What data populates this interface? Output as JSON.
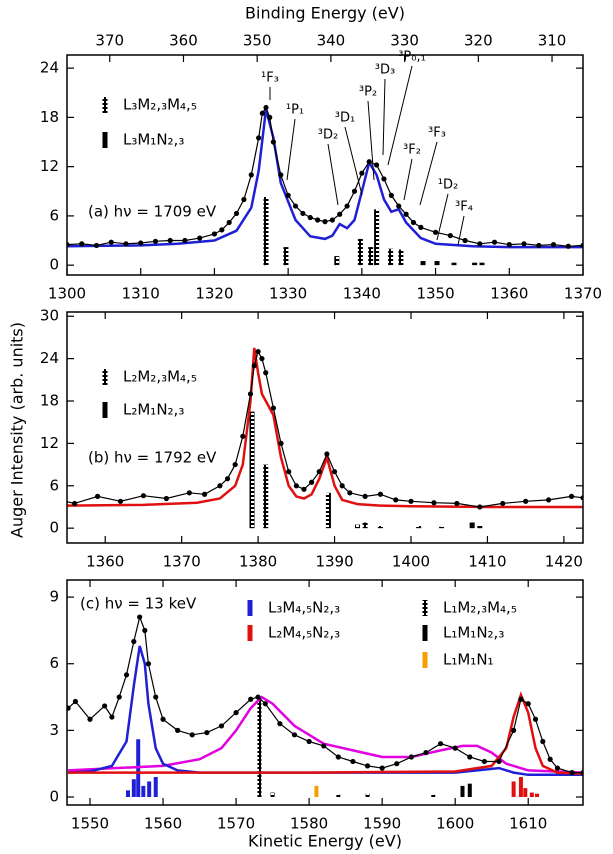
{
  "chart_data": [
    {
      "type": "line",
      "x2label": "Binding Energy (eV)",
      "annotation": "(a) hν = 1709 eV",
      "xlim": [
        1300,
        1370
      ],
      "xticks": [
        1300,
        1310,
        1320,
        1330,
        1340,
        1350,
        1360,
        1370
      ],
      "x2lim": [
        375.8,
        305.8
      ],
      "x2ticks": [
        370,
        360,
        350,
        340,
        330,
        320,
        310
      ],
      "ylim": [
        -1.2,
        25.6
      ],
      "yticks": [
        0,
        6,
        12,
        18,
        24
      ],
      "terms": [
        "¹F₃",
        "¹P₁",
        "³D₂",
        "³D₁",
        "³P₂",
        "³D₃",
        "³P₀,₁",
        "³F₂",
        "³F₃",
        "¹D₂",
        "³F₄"
      ],
      "series": [
        {
          "style": "points",
          "color": "#000000",
          "x": [
            1300,
            1302,
            1304,
            1306,
            1308,
            1310,
            1312,
            1314,
            1316,
            1318,
            1320,
            1321,
            1322,
            1323,
            1324,
            1325,
            1326,
            1326.5,
            1327,
            1327.5,
            1328,
            1329,
            1330,
            1331,
            1332,
            1333,
            1334,
            1335,
            1336,
            1337,
            1338,
            1339,
            1340,
            1341,
            1342,
            1343,
            1344,
            1345,
            1346,
            1347,
            1348,
            1350,
            1352,
            1354,
            1356,
            1358,
            1360,
            1362,
            1364,
            1366,
            1368,
            1370
          ],
          "values": [
            2.5,
            2.6,
            2.4,
            2.8,
            2.6,
            2.7,
            2.9,
            3.0,
            3.0,
            3.3,
            3.8,
            4.3,
            5.2,
            6.3,
            8.0,
            11,
            15.5,
            18.5,
            19.2,
            18,
            15,
            11,
            8.5,
            7.2,
            6.3,
            5.8,
            5.5,
            5.3,
            5.5,
            6.2,
            7.2,
            9.0,
            11.2,
            12.6,
            12.2,
            10.5,
            8.5,
            7.2,
            6.2,
            5.2,
            4.6,
            4.0,
            3.6,
            3.0,
            2.6,
            2.8,
            2.5,
            2.6,
            2.4,
            2.5,
            2.3,
            2.4
          ]
        },
        {
          "style": "line",
          "color": "#1f1fd6",
          "x": [
            1300,
            1310,
            1315,
            1320,
            1323,
            1325,
            1326,
            1327,
            1328,
            1329,
            1331,
            1333,
            1335,
            1336,
            1337,
            1338,
            1339,
            1340,
            1341,
            1342,
            1343,
            1344,
            1345,
            1346,
            1348,
            1350,
            1355,
            1360,
            1370
          ],
          "values": [
            2.3,
            2.4,
            2.6,
            3.0,
            4.2,
            7,
            11.5,
            19,
            15.5,
            10,
            5.5,
            3.5,
            3.2,
            3.6,
            5,
            4.5,
            5.5,
            9,
            12.5,
            11,
            8,
            6.5,
            6.8,
            5.2,
            3.3,
            2.6,
            2.3,
            2.2,
            2.2
          ]
        },
        {
          "style": "sticks",
          "name": "L₃M₂,₃M₄,₅",
          "color": "hatched",
          "x": [
            1327,
            1329.7,
            1336.6,
            1339.8,
            1341.2,
            1342,
            1343.9,
            1345.3
          ],
          "values": [
            8.3,
            2.2,
            1.1,
            3.2,
            2.2,
            6.8,
            2.0,
            1.9
          ]
        },
        {
          "style": "sticks",
          "name": "L₃M₁N₂,₃",
          "color": "#000000",
          "x": [
            1348.3,
            1350.2,
            1352.5,
            1355.3,
            1356.3
          ],
          "values": [
            0.5,
            0.5,
            0.3,
            0.3,
            0.3
          ]
        }
      ]
    },
    {
      "type": "line",
      "ylabel": "Auger Intensity (arb. units)",
      "annotation": "(b) hν = 1792 eV",
      "xlim": [
        1355,
        1422.5
      ],
      "xticks": [
        1360,
        1370,
        1380,
        1390,
        1400,
        1410,
        1420
      ],
      "ylim": [
        -2.1,
        30.6
      ],
      "yticks": [
        0,
        6,
        12,
        18,
        24,
        30
      ],
      "series": [
        {
          "style": "points",
          "color": "#000000",
          "x": [
            1353,
            1356,
            1359,
            1362,
            1365,
            1368,
            1371,
            1373,
            1375,
            1376,
            1377,
            1378,
            1379,
            1379.5,
            1380,
            1380.5,
            1381,
            1382,
            1383,
            1384,
            1385,
            1386,
            1387,
            1388,
            1389,
            1390,
            1391,
            1392,
            1394,
            1396,
            1398,
            1400,
            1403,
            1406,
            1409,
            1412,
            1415,
            1418,
            1421,
            1422.5
          ],
          "values": [
            4.2,
            3.5,
            4.5,
            3.8,
            4.6,
            4.2,
            5,
            4.8,
            6,
            7,
            9,
            13,
            19,
            23,
            25,
            24,
            22,
            17,
            12,
            8,
            6,
            5.5,
            6.5,
            8,
            10.5,
            8,
            6,
            5,
            4.5,
            4.8,
            4,
            3.8,
            3.6,
            3.5,
            3,
            3.5,
            3.8,
            4,
            4.5,
            4.3
          ]
        },
        {
          "style": "line",
          "color": "#e01010",
          "x": [
            1355,
            1365,
            1372,
            1375,
            1377,
            1378,
            1379,
            1379.5,
            1380,
            1380.5,
            1381,
            1382,
            1383,
            1384,
            1385,
            1386,
            1387,
            1388,
            1389,
            1390,
            1391,
            1393,
            1396,
            1400,
            1410,
            1422.5
          ],
          "values": [
            3.2,
            3.3,
            3.6,
            4.2,
            6,
            9,
            18,
            25.5,
            22,
            19,
            18,
            16,
            10,
            6,
            4.5,
            4.2,
            4.8,
            7,
            10,
            6,
            4,
            3.4,
            3.2,
            3.1,
            3.0,
            3.0
          ]
        },
        {
          "style": "sticks",
          "name": "L₂M₂,₃M₄,₅",
          "color": "hatched",
          "x": [
            1379.2,
            1381,
            1389.2,
            1393,
            1394,
            1396,
            1401,
            1404
          ],
          "values": [
            16.5,
            9,
            5,
            0.5,
            0.8,
            0.3,
            0.3,
            0.2
          ]
        },
        {
          "style": "sticks",
          "name": "L₂M₁N₂,₃",
          "color": "#000000",
          "x": [
            1408,
            1409
          ],
          "values": [
            0.8,
            0.3
          ]
        }
      ]
    },
    {
      "type": "line",
      "xlabel": "Kinetic Energy (eV)",
      "annotation": "(c) hν = 13 keV",
      "xlim": [
        1546.85,
        1617.5
      ],
      "xticks": [
        1550,
        1560,
        1570,
        1580,
        1590,
        1600,
        1610
      ],
      "ylim": [
        -0.36,
        9.77
      ],
      "yticks": [
        0,
        3,
        6,
        9
      ],
      "series": [
        {
          "style": "points",
          "color": "#000000",
          "x": [
            1547,
            1548,
            1550,
            1552,
            1553,
            1554,
            1555,
            1556,
            1556.8,
            1557.5,
            1558,
            1559,
            1560,
            1562,
            1564,
            1566,
            1568,
            1570,
            1572,
            1573,
            1574,
            1576,
            1578,
            1580,
            1582,
            1584,
            1586,
            1588,
            1590,
            1592,
            1594,
            1596,
            1598,
            1600,
            1602,
            1604,
            1606,
            1608,
            1609,
            1610,
            1611,
            1612,
            1613,
            1614,
            1616,
            1617.5
          ],
          "values": [
            4,
            4.3,
            3.5,
            4.1,
            3.6,
            4.5,
            5.5,
            7,
            8.1,
            7.5,
            6,
            4.5,
            3.5,
            3.0,
            2.8,
            2.9,
            3.2,
            3.8,
            4.4,
            4.5,
            4.2,
            3.3,
            2.8,
            2.5,
            2.3,
            1.8,
            1.6,
            1.4,
            1.3,
            1.5,
            1.8,
            2.0,
            2.4,
            2.2,
            1.8,
            1.6,
            1.6,
            3,
            4.4,
            4.2,
            3.5,
            2.5,
            1.7,
            1.3,
            1.1,
            1.1
          ]
        },
        {
          "style": "line",
          "color": "#e000e0",
          "x": [
            1547,
            1560,
            1565,
            1568,
            1570,
            1572,
            1573.5,
            1575,
            1578,
            1582,
            1586,
            1590,
            1594,
            1598,
            1601,
            1603,
            1605,
            1607,
            1610,
            1617.5
          ],
          "values": [
            1.2,
            1.4,
            1.7,
            2.2,
            3,
            4,
            4.5,
            4.2,
            3.2,
            2.4,
            2.1,
            1.8,
            1.8,
            2.1,
            2.3,
            2.3,
            2.0,
            1.5,
            1.2,
            1.1
          ]
        },
        {
          "style": "line",
          "color": "#1f1fd6",
          "x": [
            1547,
            1550,
            1553,
            1555,
            1556,
            1556.8,
            1557.5,
            1558,
            1559,
            1560,
            1562,
            1565,
            1580,
            1600,
            1606,
            1608,
            1610,
            1617.5
          ],
          "values": [
            1.1,
            1.15,
            1.4,
            2.5,
            5,
            6.8,
            6,
            4.2,
            2.2,
            1.5,
            1.2,
            1.1,
            1.1,
            1.1,
            1.3,
            1.1,
            1.0,
            1.0
          ]
        },
        {
          "style": "line",
          "color": "#e01010",
          "x": [
            1547,
            1580,
            1600,
            1605,
            1607,
            1608,
            1609,
            1610,
            1611,
            1612,
            1614,
            1617.5
          ],
          "values": [
            1.1,
            1.1,
            1.15,
            1.4,
            2.2,
            3.6,
            4.6,
            3.8,
            2.2,
            1.4,
            1.1,
            1.05
          ]
        },
        {
          "style": "sticks",
          "name": "L₃M₄,₅N₂,₃",
          "color": "#1f1fd6",
          "x": [
            1555.2,
            1556,
            1556.6,
            1557.3,
            1558.1,
            1559
          ],
          "values": [
            0.3,
            0.8,
            2.6,
            0.5,
            0.7,
            0.9
          ]
        },
        {
          "style": "sticks",
          "name": "L₂M₄,₅N₂,₃",
          "color": "#e01010",
          "x": [
            1608,
            1609,
            1609.6,
            1610.5,
            1611.2
          ],
          "values": [
            0.7,
            0.9,
            0.4,
            0.2,
            0.15
          ]
        },
        {
          "style": "sticks",
          "name": "L₁M₂,₃M₄,₅",
          "color": "hatched",
          "x": [
            1573.2,
            1575,
            1584,
            1588,
            1597
          ],
          "values": [
            4.5,
            0.2,
            0.1,
            0.15,
            0.1
          ]
        },
        {
          "style": "sticks",
          "name": "L₁M₁N₂,₃",
          "color": "#000000",
          "x": [
            1601,
            1602
          ],
          "values": [
            0.5,
            0.6
          ]
        },
        {
          "style": "sticks",
          "name": "L₁M₁N₁",
          "color": "#f5a000",
          "x": [
            1581
          ],
          "values": [
            0.5
          ]
        }
      ]
    }
  ]
}
